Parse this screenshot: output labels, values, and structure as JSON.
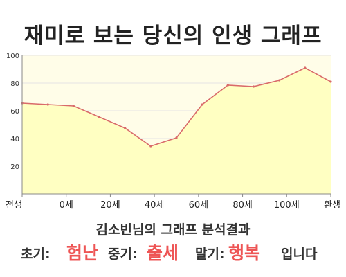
{
  "chart_data": {
    "type": "area",
    "title": "재미로 보는 당신의 인생 그래프",
    "x_tick_labels": [
      "전생",
      "0세",
      "20세",
      "40세",
      "60세",
      "80세",
      "100세",
      "환생"
    ],
    "x": [
      -10,
      0,
      10,
      20,
      30,
      40,
      50,
      60,
      70,
      80,
      90,
      100,
      110
    ],
    "series": [
      {
        "values": [
          65.5,
          64.5,
          63.5,
          55.5,
          47.5,
          34.5,
          40.5,
          64.5,
          78.5,
          77.5,
          82,
          91,
          81
        ]
      }
    ],
    "ylim": [
      0,
      100
    ],
    "yticks": [
      20,
      40,
      60,
      80,
      100
    ],
    "grid": true,
    "colors": {
      "line": "#d96a6a",
      "fill": "#ffffc2",
      "background": "#fffde8",
      "grid": "#e4e4e4"
    }
  },
  "result": {
    "heading": "김소빈님의 그래프 분석결과",
    "early_label": "초기:",
    "early_value": "험난",
    "middle_label": "중기:",
    "middle_value": "출세",
    "late_label": "말기:",
    "late_value": "행복",
    "ending": "입니다",
    "highlight_color": "#ee5555"
  }
}
